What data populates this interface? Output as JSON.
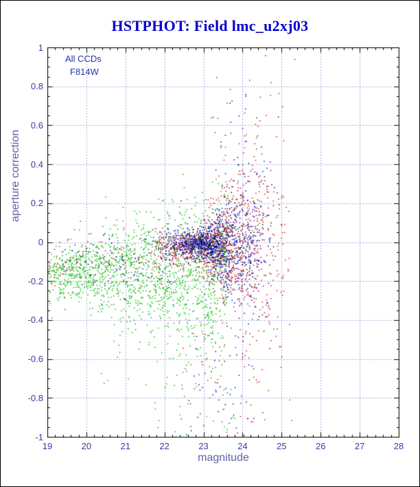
{
  "figure": {
    "background": "#ffffff",
    "border_color": "#000000"
  },
  "chart_data": {
    "type": "scatter",
    "title": "HSTPHOT: Field lmc_u2xj03",
    "xlabel": "magnitude",
    "ylabel": "aperture correction",
    "xlim": [
      19,
      28
    ],
    "ylim": [
      -1,
      1
    ],
    "xticks": [
      "19",
      "20",
      "21",
      "22",
      "23",
      "24",
      "25",
      "26",
      "27",
      "28"
    ],
    "yticks": [
      "1",
      "0.8",
      "0.6",
      "0.4",
      "0.2",
      "0",
      "-0.2",
      "-0.4",
      "-0.6",
      "-0.8",
      "-1"
    ],
    "grid": "dotted",
    "legend_position": "none",
    "annotations": [
      "All CCDs",
      "F814W"
    ],
    "colors": {
      "title": "#0000cc",
      "axis_text": "#3a3aa0",
      "axis_label": "#5f5fa8",
      "grid": "#3333bb",
      "frame": "#000000",
      "annotation": "#2233aa"
    },
    "marker_size_px": 1.5,
    "seed": 42,
    "series": [
      {
        "name": "green",
        "color": "#00bb00",
        "clusters": [
          {
            "n": 1500,
            "mag": [
              19.0,
              23.6
            ],
            "skew": 1.15,
            "y0": -0.16,
            "sigma0": 0.07,
            "flare": 0.035,
            "flare_start": 19.5
          },
          {
            "n": 70,
            "mag": [
              20.3,
              23.6
            ],
            "yrange": [
              -0.75,
              -0.35
            ]
          },
          {
            "n": 25,
            "mag": [
              21.5,
              23.8
            ],
            "yrange": [
              -1.0,
              -0.75
            ]
          },
          {
            "n": 40,
            "mag": [
              20.5,
              23.5
            ],
            "y0": 0.03,
            "sigma0": 0.07
          }
        ]
      },
      {
        "name": "red",
        "color": "#cc1111",
        "clusters": [
          {
            "n": 950,
            "mag": [
              21.6,
              25.4
            ],
            "tri": true,
            "y0": -0.03,
            "sigma0": 0.045,
            "flare": 0.15,
            "flare_start": 22.8
          },
          {
            "n": 90,
            "mag": [
              19.0,
              22.0
            ],
            "y0": -0.12,
            "sigma0": 0.08
          },
          {
            "n": 45,
            "mag": [
              22.4,
              24.6
            ],
            "yrange": [
              -1.0,
              -0.45
            ]
          },
          {
            "n": 25,
            "mag": [
              23.2,
              24.5
            ],
            "yrange": [
              0.3,
              0.85
            ]
          }
        ]
      },
      {
        "name": "black",
        "color": "#111111",
        "clusters": [
          {
            "n": 450,
            "mag": [
              22.0,
              24.6
            ],
            "tri": true,
            "y0": -0.015,
            "sigma0": 0.035,
            "flare": 0.09,
            "flare_start": 23.0
          },
          {
            "n": 35,
            "mag": [
              19.5,
              22.3
            ],
            "y0": -0.1,
            "sigma0": 0.07
          },
          {
            "n": 15,
            "mag": [
              22.8,
              24.2
            ],
            "yrange": [
              -0.9,
              -0.4
            ]
          }
        ]
      },
      {
        "name": "blue",
        "color": "#0000cc",
        "clusters": [
          {
            "n": 800,
            "mag": [
              21.7,
              25.0
            ],
            "tri": true,
            "y0": -0.015,
            "sigma0": 0.04,
            "flare": 0.12,
            "flare_start": 22.9
          },
          {
            "n": 60,
            "mag": [
              19.2,
              22.2
            ],
            "y0": -0.1,
            "sigma0": 0.07
          },
          {
            "n": 30,
            "mag": [
              22.5,
              24.3
            ],
            "yrange": [
              -1.0,
              -0.45
            ]
          },
          {
            "n": 20,
            "mag": [
              23.3,
              24.4
            ],
            "yrange": [
              0.25,
              0.8
            ]
          }
        ]
      }
    ]
  }
}
